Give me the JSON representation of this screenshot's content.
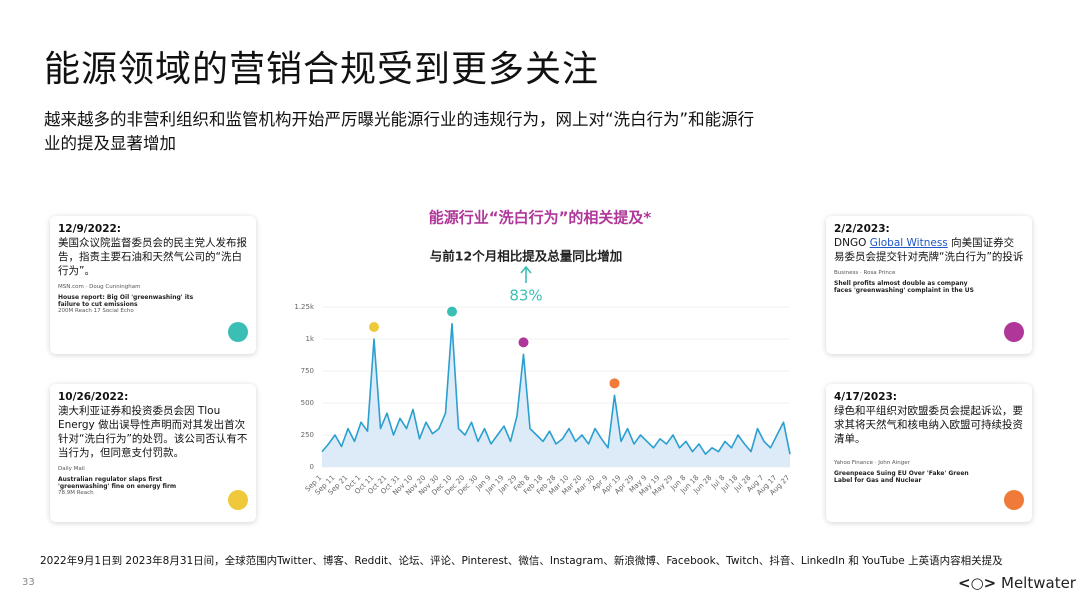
{
  "header": {
    "title": "能源领域的营销合规受到更多关注",
    "subtitle_line1": "越来越多的非营利组织和监管机构开始严厉曝光能源行业的违规行为，网上对“洗白行为”和能源行",
    "subtitle_line2": "业的提及显著增加"
  },
  "chart_data": {
    "type": "line",
    "title": "能源行业“洗白行为”的相关提及*",
    "annotation": "与前12个月相比提及总量同比增加",
    "annotation_value": "83%",
    "color": "#2a9fd0",
    "categories": [
      "Sep 1",
      null,
      "Sep 11",
      null,
      "Sep 21",
      null,
      "Oct 1",
      null,
      "Oct 11",
      null,
      "Oct 21",
      null,
      "Oct 31",
      null,
      "Nov 10",
      null,
      "Nov 20",
      null,
      "Nov 30",
      null,
      "Dec 10",
      null,
      "Dec 20",
      null,
      "Dec 30",
      null,
      "Jan 9",
      null,
      "Jan 19",
      null,
      "Jan 29",
      null,
      "Feb 8",
      null,
      "Feb 18",
      null,
      "Feb 28",
      null,
      "Mar 10",
      null,
      "Mar 20",
      null,
      "Mar 30",
      null,
      "Apr 9",
      null,
      "Apr 19",
      null,
      "Apr 29",
      null,
      "May 9",
      null,
      "May 19",
      null,
      "May 29",
      null,
      "Jun 8",
      null,
      "Jun 18",
      null,
      "Jun 28",
      null,
      "Jul 8",
      null,
      "Jul 18",
      null,
      "Jul 28",
      null,
      "Aug 7",
      null,
      "Aug 17",
      null,
      "Aug 27"
    ],
    "values": [
      120,
      180,
      250,
      160,
      300,
      200,
      350,
      280,
      1000,
      300,
      420,
      250,
      380,
      300,
      450,
      220,
      350,
      260,
      300,
      420,
      1120,
      300,
      250,
      350,
      200,
      300,
      180,
      250,
      320,
      200,
      400,
      880,
      300,
      250,
      200,
      280,
      180,
      220,
      300,
      200,
      250,
      180,
      300,
      220,
      150,
      560,
      200,
      300,
      180,
      250,
      200,
      150,
      220,
      180,
      250,
      150,
      200,
      120,
      180,
      100,
      150,
      120,
      200,
      150,
      250,
      180,
      120,
      300,
      200,
      150,
      250,
      350,
      100
    ],
    "ylim": [
      0,
      1250
    ],
    "yticks": [
      0,
      250,
      500,
      750,
      {
        "value": 1000,
        "label": "1k"
      },
      {
        "value": 1250,
        "label": "1.25k"
      }
    ],
    "markers": [
      {
        "point": 8,
        "color": "#f0c93a"
      },
      {
        "point": 20,
        "color": "#3bbfb5"
      },
      {
        "point": 31,
        "color": "#b0369a"
      },
      {
        "point": 45,
        "color": "#f07a3a"
      }
    ]
  },
  "cards": [
    {
      "date": "12/9/2022:",
      "text": "美国众议院监督委员会的民主党人发布报告，指责主要石油和天然气公司的“洗白行为”。",
      "source": "MSN.com · Doug Cunningham",
      "headline": "House report: Big Oil 'greenwashing' its failure to cut emissions",
      "stats": "200M Reach   17 Social Echo",
      "color": "#3bbfb5"
    },
    {
      "date": "10/26/2022:",
      "text": "澳大利亚证券和投资委员会因 Tlou Energy 做出误导性声明而对其发出首次针对“洗白行为”的处罚。该公司否认有不当行为，但同意支付罚款。",
      "source": "Daily Mail",
      "headline": "Australian regulator slaps first 'greenwashing' fine on energy firm",
      "stats": "78.9M Reach",
      "color": "#f0c93a"
    },
    {
      "date": "2/2/2023:",
      "text_before": "DNGO ",
      "link": "Global Witness",
      "text_after": " 向美国证券交易委员会提交针对壳牌“洗白行为”的投诉",
      "source": "Business · Rosa Prince",
      "headline": "Shell profits almost double as company faces 'greenwashing' complaint in the US",
      "color": "#b0369a"
    },
    {
      "date": "4/17/2023:",
      "text": "绿色和平组织对欧盟委员会提起诉讼，要求其将天然气和核电纳入欧盟可持续投资清单。",
      "source": "Yahoo Finance · John Ainger",
      "headline": "Greenpeace Suing EU Over 'Fake' Green Label for Gas and Nuclear",
      "color": "#f07a3a"
    }
  ],
  "footer": {
    "note": "2022年9月1日到 2023年8月31日间，全球范围内Twitter、博客、Reddit、论坛、评论、Pinterest、微信、Instagram、新浪微博、Facebook、Twitch、抖音、LinkedIn 和 YouTube 上英语内容相关提及",
    "page": "33",
    "logo": "Meltwater"
  }
}
